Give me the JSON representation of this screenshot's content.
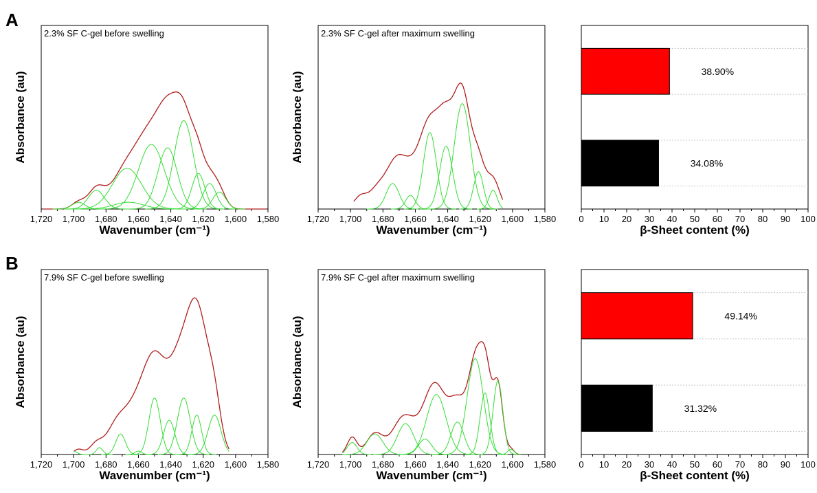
{
  "panels": [
    "A",
    "B"
  ],
  "colors": {
    "envelope": "#b01c1c",
    "component": "#33dd33",
    "red_bar": "#ff0000",
    "black_bar": "#000000"
  },
  "chart_data": [
    {
      "type": "line",
      "panel": "A",
      "title": "2.3% SF C-gel before swelling",
      "xlabel": "Wavenumber (cm⁻¹)",
      "ylabel": "Absorbance (au)",
      "xlim": [
        1720,
        1580
      ],
      "ylim": [
        0,
        1.08
      ],
      "x_reversed": true,
      "y_ticks_shown": false,
      "xticks": [
        "1,720",
        "1,700",
        "1,680",
        "1,660",
        "1,640",
        "1,620",
        "1,600",
        "1,580"
      ],
      "x_range": [
        1719,
        1581
      ],
      "series": [
        {
          "kind": "envelope",
          "peaks": [
            [
              1697,
              0.04,
              4
            ],
            [
              1686,
              0.11,
              5
            ],
            [
              1667,
              0.24,
              9
            ],
            [
              1652,
              0.38,
              8
            ],
            [
              1642,
              0.36,
              6
            ],
            [
              1632,
              0.52,
              6
            ],
            [
              1623,
              0.21,
              4
            ],
            [
              1616,
              0.15,
              4
            ],
            [
              1610,
              0.1,
              4
            ]
          ]
        },
        {
          "kind": "component",
          "center": 1697,
          "height": 0.04,
          "width": 4
        },
        {
          "kind": "component",
          "center": 1686,
          "height": 0.11,
          "width": 5
        },
        {
          "kind": "component",
          "center": 1667,
          "height": 0.24,
          "width": 9
        },
        {
          "kind": "component",
          "center": 1666,
          "height": 0.04,
          "width": 9
        },
        {
          "kind": "component",
          "center": 1652,
          "height": 0.38,
          "width": 8
        },
        {
          "kind": "component",
          "center": 1642,
          "height": 0.36,
          "width": 6
        },
        {
          "kind": "component",
          "center": 1632,
          "height": 0.52,
          "width": 6
        },
        {
          "kind": "component",
          "center": 1623,
          "height": 0.21,
          "width": 4
        },
        {
          "kind": "component",
          "center": 1616,
          "height": 0.15,
          "width": 4
        },
        {
          "kind": "component",
          "center": 1610,
          "height": 0.1,
          "width": 4
        }
      ]
    },
    {
      "type": "line",
      "panel": "A",
      "title": "2.3% SF C-gel after maximum swelling",
      "xlabel": "Wavenumber (cm⁻¹)",
      "ylabel": "Absorbance (au)",
      "xlim": [
        1720,
        1580
      ],
      "ylim": [
        0,
        1.08
      ],
      "x_reversed": true,
      "y_ticks_shown": false,
      "xticks": [
        "1,720",
        "1,700",
        "1,680",
        "1,660",
        "1,640",
        "1,620",
        "1,600",
        "1,580"
      ],
      "x_range": [
        1698,
        1606
      ],
      "series": [
        {
          "kind": "envelope",
          "peaks": [
            [
              1694,
              0.07,
              4
            ],
            [
              1684,
              0.1,
              5
            ],
            [
              1673,
              0.22,
              6
            ],
            [
              1663,
              0.2,
              7
            ],
            [
              1651,
              0.45,
              6
            ],
            [
              1641,
              0.43,
              5
            ],
            [
              1631,
              0.66,
              5
            ],
            [
              1621,
              0.26,
              4
            ],
            [
              1612,
              0.17,
              4
            ]
          ]
        },
        {
          "kind": "component",
          "center": 1674,
          "height": 0.15,
          "width": 4
        },
        {
          "kind": "component",
          "center": 1663,
          "height": 0.08,
          "width": 3
        },
        {
          "kind": "component",
          "center": 1651,
          "height": 0.45,
          "width": 4
        },
        {
          "kind": "component",
          "center": 1641,
          "height": 0.37,
          "width": 4
        },
        {
          "kind": "component",
          "center": 1631,
          "height": 0.62,
          "width": 5
        },
        {
          "kind": "component",
          "center": 1621,
          "height": 0.22,
          "width": 3
        },
        {
          "kind": "component",
          "center": 1612,
          "height": 0.11,
          "width": 2.5
        }
      ]
    },
    {
      "type": "bar",
      "orientation": "horizontal",
      "panel": "A",
      "xlabel": "β-Sheet content (%)",
      "xlim": [
        0,
        100
      ],
      "xticks": [
        "0",
        "10",
        "20",
        "30",
        "40",
        "50",
        "60",
        "70",
        "80",
        "90",
        "100"
      ],
      "values": [
        38.9,
        34.08
      ],
      "labels": [
        "38.90%",
        "34.08%"
      ],
      "colors": [
        "#ff0000",
        "#000000"
      ]
    },
    {
      "type": "line",
      "panel": "B",
      "title": "7.9% SF C-gel before swelling",
      "xlabel": "Wavenumber (cm⁻¹)",
      "ylabel": "Absorbance (au)",
      "xlim": [
        1720,
        1580
      ],
      "ylim": [
        0,
        1.08
      ],
      "x_reversed": true,
      "y_ticks_shown": false,
      "xticks": [
        "1,720",
        "1,700",
        "1,680",
        "1,660",
        "1,640",
        "1,620",
        "1,600",
        "1,580"
      ],
      "x_range": [
        1700,
        1604
      ],
      "series": [
        {
          "kind": "envelope",
          "peaks": [
            [
              1697,
              0.03,
              3
            ],
            [
              1686,
              0.06,
              4
            ],
            [
              1674,
              0.14,
              6
            ],
            [
              1661,
              0.27,
              8
            ],
            [
              1649,
              0.48,
              7
            ],
            [
              1636,
              0.37,
              6
            ],
            [
              1624,
              0.85,
              7
            ],
            [
              1613,
              0.22,
              4
            ]
          ]
        },
        {
          "kind": "component",
          "center": 1700,
          "height": 0.02,
          "width": 2
        },
        {
          "kind": "component",
          "center": 1684,
          "height": 0.04,
          "width": 2
        },
        {
          "kind": "component",
          "center": 1671,
          "height": 0.12,
          "width": 3
        },
        {
          "kind": "component",
          "center": 1660,
          "height": 0.02,
          "width": 2
        },
        {
          "kind": "component",
          "center": 1650,
          "height": 0.33,
          "width": 3.5
        },
        {
          "kind": "component",
          "center": 1641,
          "height": 0.2,
          "width": 3.5
        },
        {
          "kind": "component",
          "center": 1632,
          "height": 0.33,
          "width": 4
        },
        {
          "kind": "component",
          "center": 1624,
          "height": 0.23,
          "width": 3
        },
        {
          "kind": "component",
          "center": 1613,
          "height": 0.23,
          "width": 4
        }
      ]
    },
    {
      "type": "line",
      "panel": "B",
      "title": "7.9% SF C-gel after maximum swelling",
      "xlabel": "Wavenumber (cm⁻¹)",
      "ylabel": "Absorbance (au)",
      "xlim": [
        1720,
        1580
      ],
      "ylim": [
        0,
        1.08
      ],
      "x_reversed": true,
      "y_ticks_shown": false,
      "xticks": [
        "1,720",
        "1,700",
        "1,680",
        "1,660",
        "1,640",
        "1,620",
        "1,600",
        "1,580"
      ],
      "x_range": [
        1705,
        1595
      ],
      "series": [
        {
          "kind": "envelope",
          "peaks": [
            [
              1699,
              0.1,
              3
            ],
            [
              1685,
              0.12,
              5
            ],
            [
              1667,
              0.22,
              7
            ],
            [
              1648,
              0.41,
              7
            ],
            [
              1634,
              0.26,
              5
            ],
            [
              1622,
              0.58,
              5
            ],
            [
              1616,
              0.28,
              3
            ],
            [
              1609,
              0.4,
              3
            ],
            [
              1601,
              0.03,
              2
            ]
          ]
        },
        {
          "kind": "component",
          "center": 1699,
          "height": 0.07,
          "width": 3
        },
        {
          "kind": "component",
          "center": 1685,
          "height": 0.12,
          "width": 5
        },
        {
          "kind": "component",
          "center": 1666,
          "height": 0.18,
          "width": 5
        },
        {
          "kind": "component",
          "center": 1654,
          "height": 0.09,
          "width": 4
        },
        {
          "kind": "component",
          "center": 1647,
          "height": 0.35,
          "width": 6
        },
        {
          "kind": "component",
          "center": 1634,
          "height": 0.19,
          "width": 4
        },
        {
          "kind": "component",
          "center": 1623,
          "height": 0.56,
          "width": 5
        },
        {
          "kind": "component",
          "center": 1617,
          "height": 0.36,
          "width": 3
        },
        {
          "kind": "component",
          "center": 1609,
          "height": 0.43,
          "width": 3
        },
        {
          "kind": "component",
          "center": 1601,
          "height": 0.03,
          "width": 2
        }
      ]
    },
    {
      "type": "bar",
      "orientation": "horizontal",
      "panel": "B",
      "xlabel": "β-Sheet content (%)",
      "xlim": [
        0,
        100
      ],
      "xticks": [
        "0",
        "10",
        "20",
        "30",
        "40",
        "50",
        "60",
        "70",
        "80",
        "90",
        "100"
      ],
      "values": [
        49.14,
        31.32
      ],
      "labels": [
        "49.14%",
        "31.32%"
      ],
      "colors": [
        "#ff0000",
        "#000000"
      ]
    }
  ]
}
